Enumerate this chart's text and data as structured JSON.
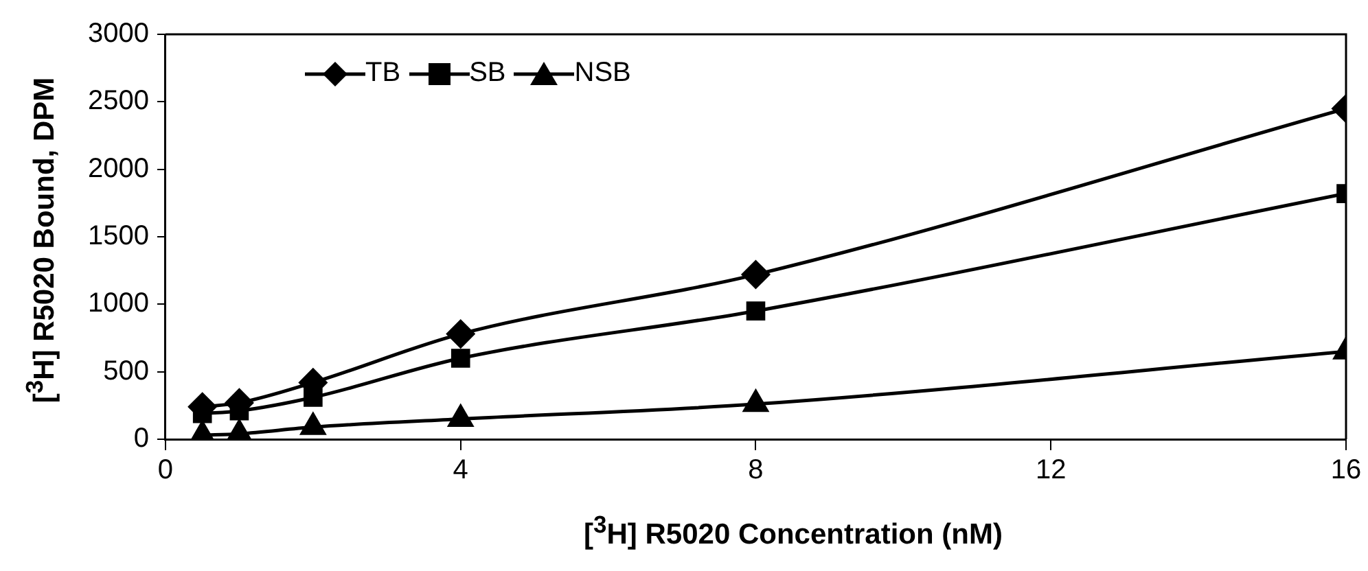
{
  "chart_data": {
    "type": "line",
    "xlabel": "[$^{3}$H] R5020 Concentration (nM)",
    "ylabel": "[$^{3}$H] R5020 Bound, DPM",
    "x": [
      0.5,
      1,
      2,
      4,
      8,
      16
    ],
    "series": [
      {
        "name": "TB",
        "color": "#000000",
        "marker": "diamond",
        "values": [
          240,
          270,
          420,
          780,
          1220,
          2450
        ]
      },
      {
        "name": "SB",
        "color": "#000000",
        "marker": "square",
        "values": [
          190,
          210,
          310,
          600,
          950,
          1820
        ]
      },
      {
        "name": "NSB",
        "color": "#000000",
        "marker": "triangle",
        "values": [
          30,
          40,
          90,
          150,
          260,
          650
        ]
      }
    ],
    "xlim": [
      0,
      16
    ],
    "xticks": [
      0,
      4,
      8,
      12,
      16
    ],
    "ylim": [
      0,
      3000
    ],
    "yticks": [
      0,
      500,
      1000,
      1500,
      2000,
      2500,
      3000
    ],
    "grid": false,
    "legend": "top left",
    "line_style": "solid"
  }
}
